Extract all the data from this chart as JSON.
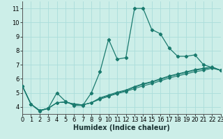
{
  "xlabel": "Humidex (Indice chaleur)",
  "background_color": "#cceee8",
  "line_color": "#1a7a6e",
  "grid_color": "#aaddda",
  "x_data": [
    0,
    1,
    2,
    3,
    4,
    5,
    6,
    7,
    8,
    9,
    10,
    11,
    12,
    13,
    14,
    15,
    16,
    17,
    18,
    19,
    20,
    21,
    22,
    23
  ],
  "series1": [
    5.5,
    4.2,
    3.7,
    3.9,
    5.0,
    4.4,
    4.1,
    4.1,
    5.0,
    6.5,
    8.8,
    7.4,
    7.5,
    11.0,
    11.0,
    9.5,
    9.2,
    8.2,
    7.6,
    7.6,
    7.7,
    7.0,
    6.8,
    6.6
  ],
  "series2": [
    5.5,
    4.2,
    3.75,
    3.9,
    4.3,
    4.35,
    4.2,
    4.15,
    4.3,
    4.55,
    4.75,
    4.95,
    5.1,
    5.3,
    5.5,
    5.65,
    5.85,
    6.05,
    6.2,
    6.35,
    6.5,
    6.6,
    6.75,
    6.6
  ],
  "series3": [
    5.5,
    4.2,
    3.75,
    3.9,
    4.3,
    4.35,
    4.2,
    4.15,
    4.3,
    4.6,
    4.8,
    5.0,
    5.15,
    5.4,
    5.6,
    5.75,
    5.95,
    6.15,
    6.3,
    6.45,
    6.6,
    6.7,
    6.8,
    6.6
  ],
  "series4": [
    5.5,
    4.2,
    3.75,
    3.9,
    4.3,
    4.35,
    4.2,
    4.15,
    4.3,
    4.65,
    4.85,
    5.05,
    5.2,
    5.45,
    5.65,
    5.8,
    6.0,
    6.2,
    6.35,
    6.5,
    6.65,
    6.75,
    6.85,
    6.6
  ],
  "ylim": [
    3.5,
    11.5
  ],
  "xlim": [
    0,
    23
  ],
  "yticks": [
    4,
    5,
    6,
    7,
    8,
    9,
    10,
    11
  ],
  "xticks": [
    0,
    1,
    2,
    3,
    4,
    5,
    6,
    7,
    8,
    9,
    10,
    11,
    12,
    13,
    14,
    15,
    16,
    17,
    18,
    19,
    20,
    21,
    22,
    23
  ],
  "xlabel_fontsize": 7,
  "tick_fontsize": 6
}
